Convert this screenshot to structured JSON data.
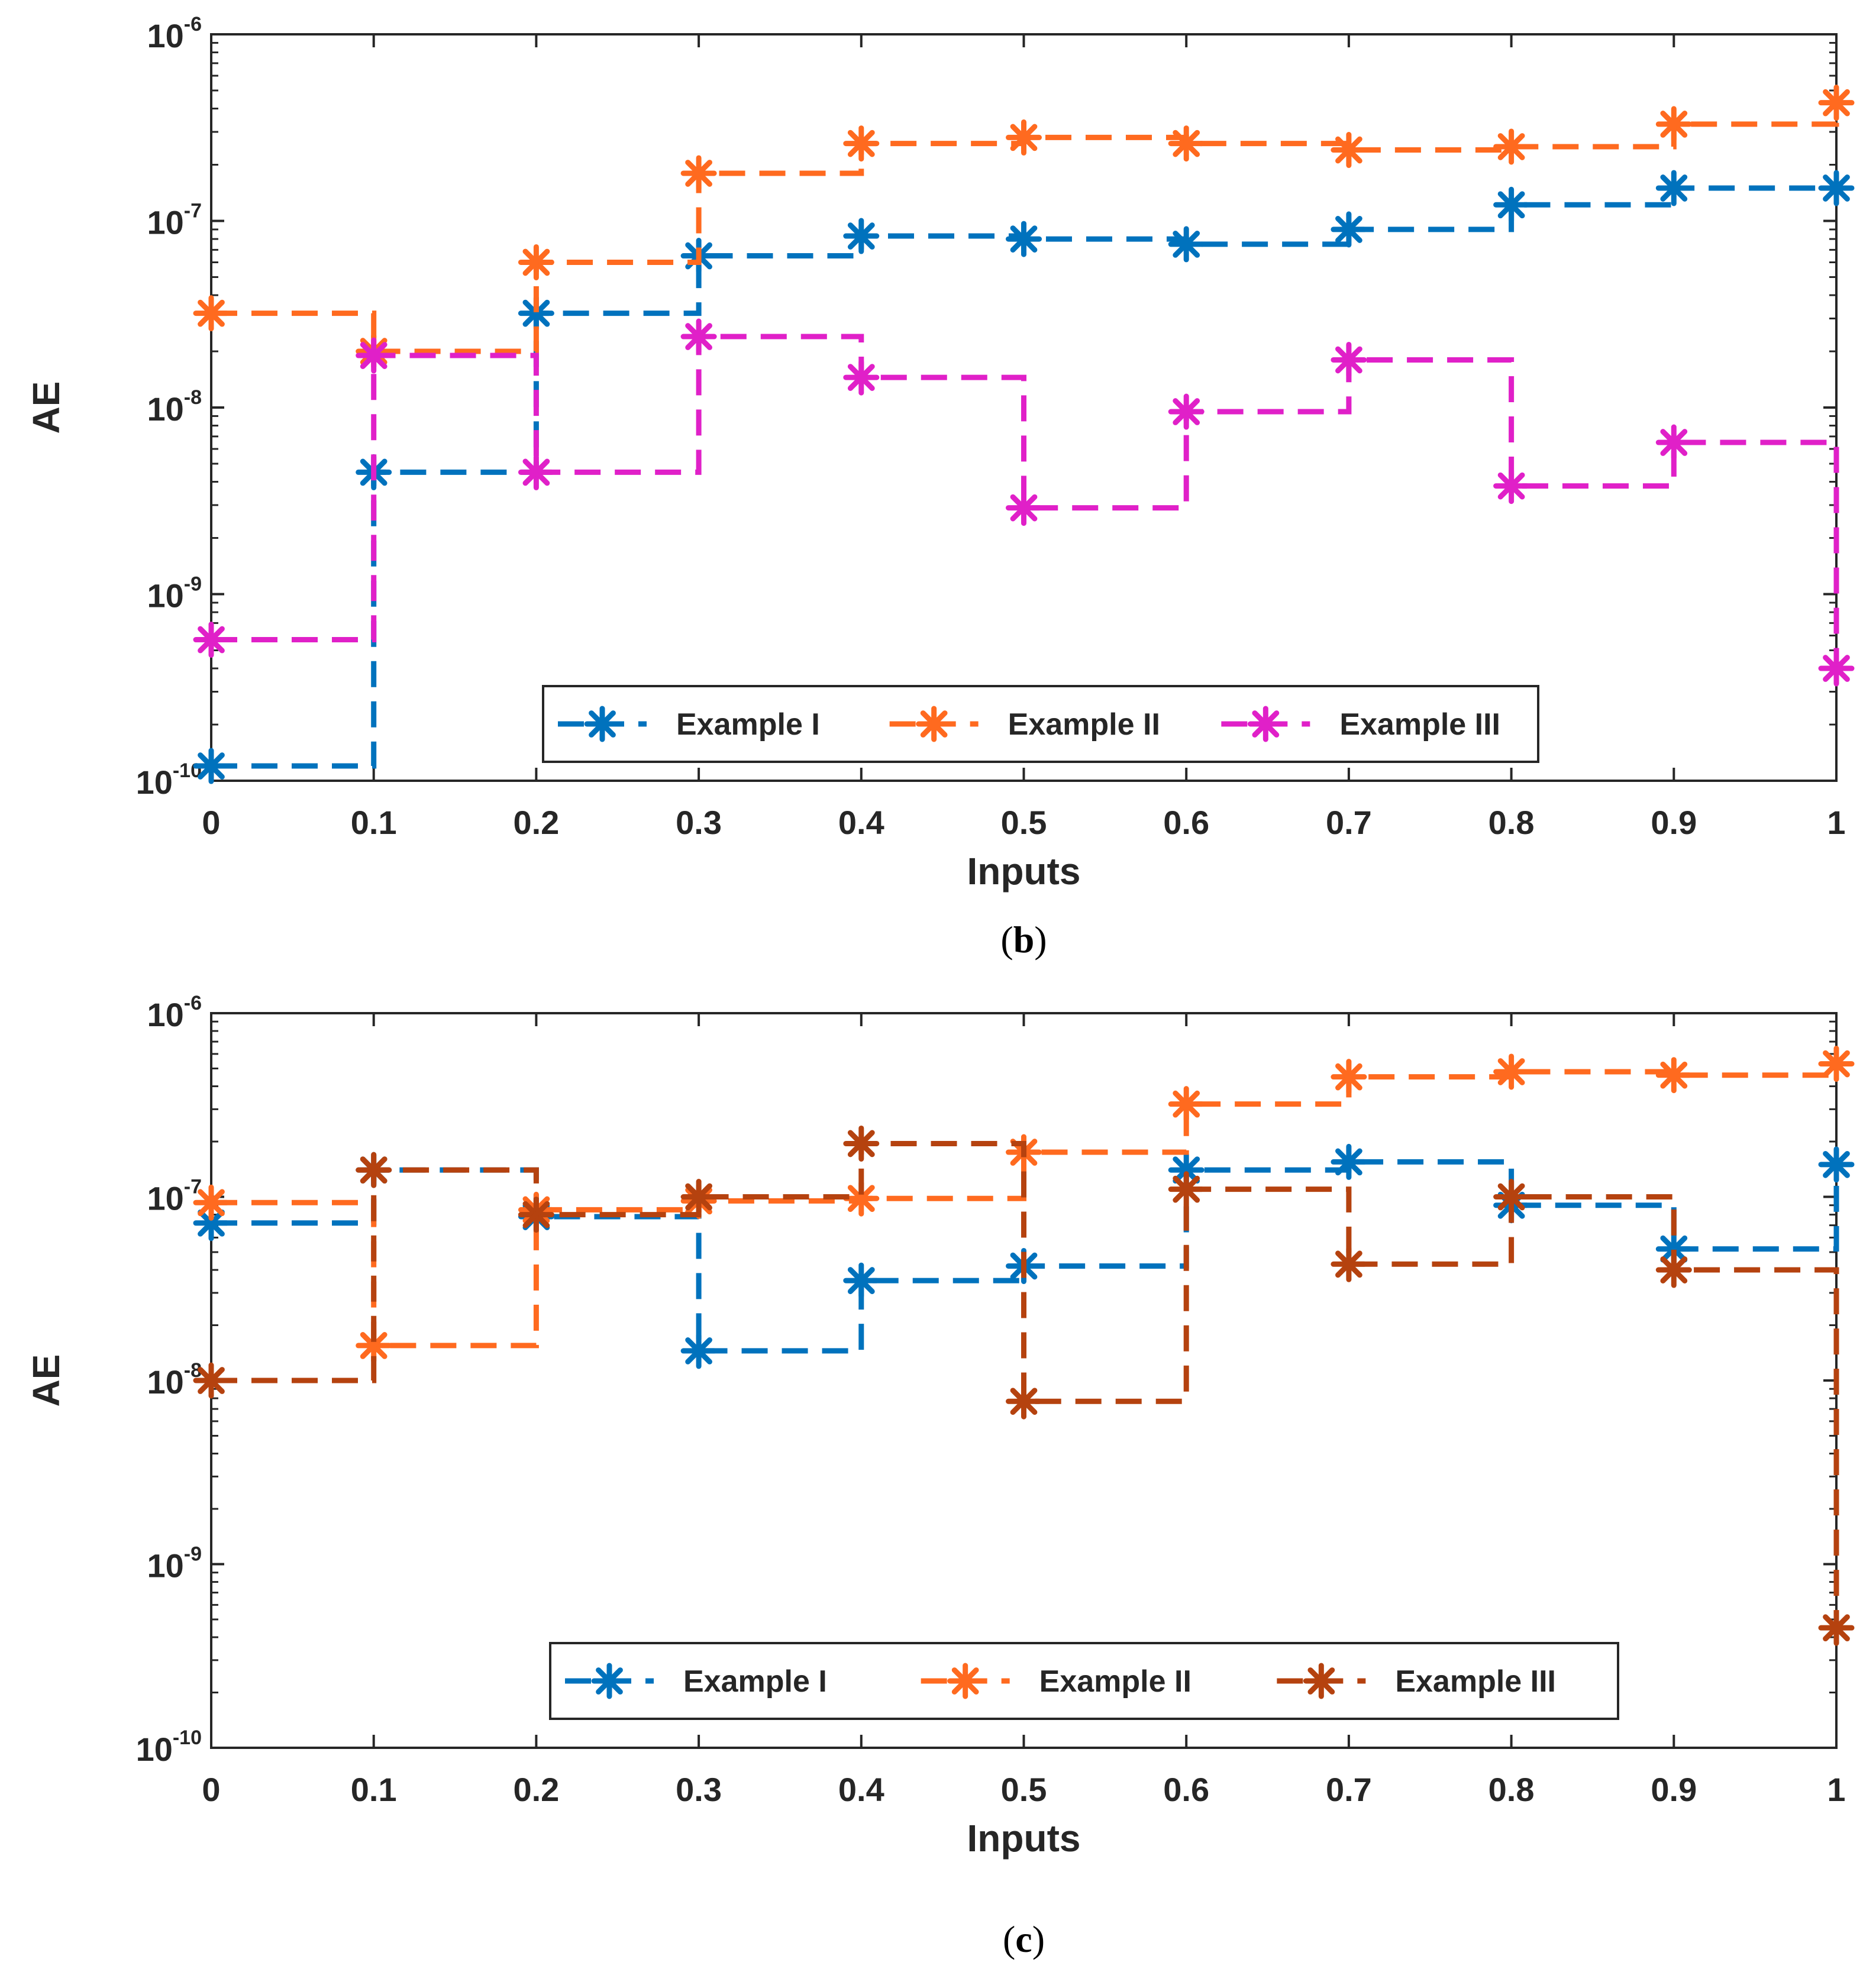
{
  "chart_data": [
    {
      "type": "line",
      "step": "post",
      "yscale": "log",
      "caption_letter": "b",
      "xlabel": "Inputs",
      "ylabel": "AE",
      "xlim": [
        0,
        1
      ],
      "ylim": [
        1e-10,
        1e-06
      ],
      "x": [
        0,
        0.1,
        0.2,
        0.3,
        0.4,
        0.5,
        0.6,
        0.7,
        0.8,
        0.9,
        1
      ],
      "xtick_labels": [
        "0",
        "0.1",
        "0.2",
        "0.3",
        "0.4",
        "0.5",
        "0.6",
        "0.7",
        "0.8",
        "0.9",
        "1"
      ],
      "ytick_exponents": [
        "-10",
        "-9",
        "-8",
        "-7",
        "-6"
      ],
      "ytick_base": "10",
      "legend_position": "bottom-center",
      "series": [
        {
          "name": "Example I",
          "color": "#0072BD",
          "values": [
            1.2e-10,
            4.5e-09,
            3.2e-08,
            6.5e-08,
            8.3e-08,
            8e-08,
            7.5e-08,
            9e-08,
            1.22e-07,
            1.5e-07,
            1.5e-07
          ]
        },
        {
          "name": "Example II",
          "color": "#FF6A1F",
          "values": [
            3.2e-08,
            2e-08,
            6e-08,
            1.8e-07,
            2.6e-07,
            2.8e-07,
            2.6e-07,
            2.4e-07,
            2.5e-07,
            3.3e-07,
            4.3e-07
          ]
        },
        {
          "name": "Example III",
          "color": "#E020C8",
          "values": [
            5.7e-10,
            1.9e-08,
            4.5e-09,
            2.4e-08,
            1.45e-08,
            2.9e-09,
            9.5e-09,
            1.8e-08,
            3.8e-09,
            6.5e-09,
            4e-10
          ]
        }
      ]
    },
    {
      "type": "line",
      "step": "post",
      "yscale": "log",
      "caption_letter": "c",
      "xlabel": "Inputs",
      "ylabel": "AE",
      "xlim": [
        0,
        1
      ],
      "ylim": [
        1e-10,
        1e-06
      ],
      "x": [
        0,
        0.1,
        0.2,
        0.3,
        0.4,
        0.5,
        0.6,
        0.7,
        0.8,
        0.9,
        1
      ],
      "xtick_labels": [
        "0",
        "0.1",
        "0.2",
        "0.3",
        "0.4",
        "0.5",
        "0.6",
        "0.7",
        "0.8",
        "0.9",
        "1"
      ],
      "ytick_exponents": [
        "-10",
        "-9",
        "-8",
        "-7",
        "-6"
      ],
      "ytick_base": "10",
      "legend_position": "bottom-center",
      "series": [
        {
          "name": "Example I",
          "color": "#0072BD",
          "values": [
            7.2e-08,
            1.4e-07,
            7.8e-08,
            1.45e-08,
            3.5e-08,
            4.2e-08,
            1.4e-07,
            1.55e-07,
            9e-08,
            5.2e-08,
            1.5e-07
          ]
        },
        {
          "name": "Example II",
          "color": "#FF6A1F",
          "values": [
            9.3e-08,
            1.55e-08,
            8.5e-08,
            9.5e-08,
            9.8e-08,
            1.75e-07,
            3.2e-07,
            4.5e-07,
            4.8e-07,
            4.6e-07,
            5.3e-07
          ]
        },
        {
          "name": "Example III",
          "color": "#B5420F",
          "values": [
            1e-08,
            1.4e-07,
            8e-08,
            1e-07,
            1.95e-07,
            7.7e-09,
            1.1e-07,
            4.3e-08,
            1e-07,
            4e-08,
            4.5e-10
          ]
        }
      ]
    }
  ]
}
